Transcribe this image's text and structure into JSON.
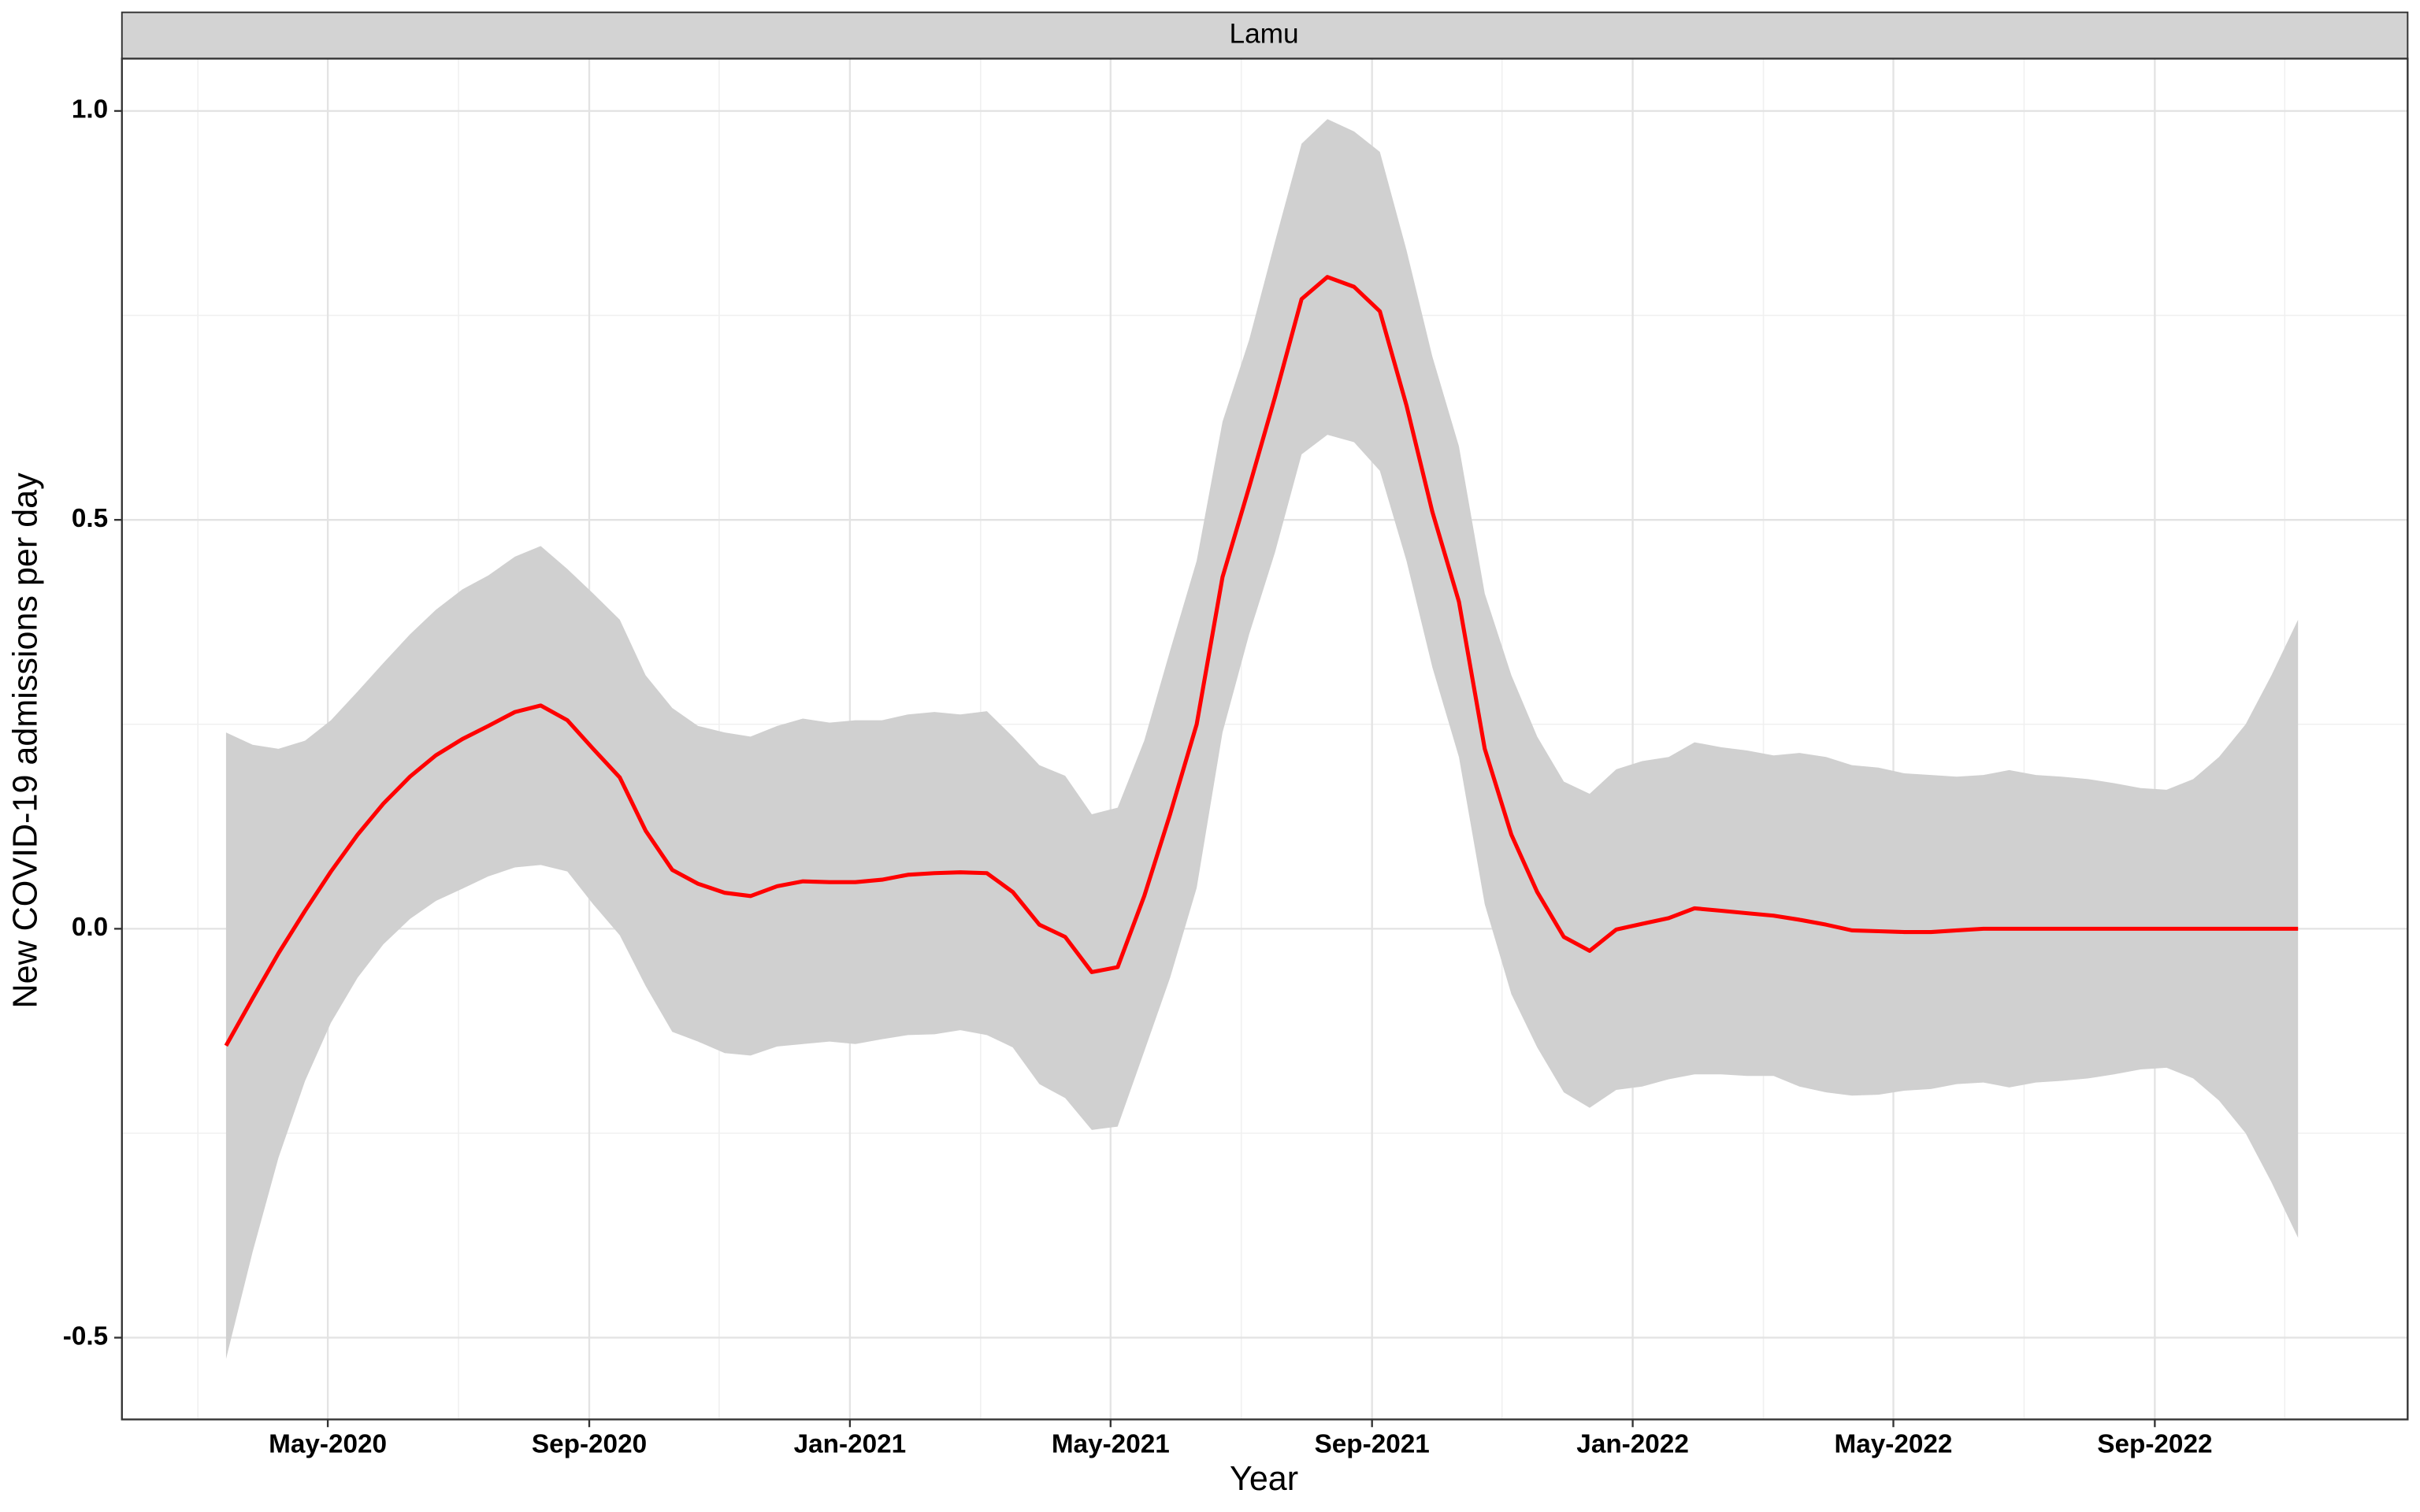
{
  "chart_data": {
    "type": "line",
    "facet": "Lamu",
    "xlabel": "Year",
    "ylabel": "New COVID-19 admissions per day",
    "color": "#ff0000",
    "band_color": "#d0d0d0",
    "grid": true,
    "xlim": [
      2020.07,
      2022.99
    ],
    "ylim": [
      -0.6,
      1.064
    ],
    "xticks": [
      {
        "value": 2020.333,
        "label": "May-2020"
      },
      {
        "value": 2020.667,
        "label": "Sep-2020"
      },
      {
        "value": 2021.0,
        "label": "Jan-2021"
      },
      {
        "value": 2021.333,
        "label": "May-2021"
      },
      {
        "value": 2021.667,
        "label": "Sep-2021"
      },
      {
        "value": 2022.0,
        "label": "Jan-2022"
      },
      {
        "value": 2022.333,
        "label": "May-2022"
      },
      {
        "value": 2022.667,
        "label": "Sep-2022"
      }
    ],
    "xminor": [
      2020.167,
      2020.5,
      2020.833,
      2021.167,
      2021.5,
      2021.833,
      2022.167,
      2022.5,
      2022.833
    ],
    "yticks": [
      -0.5,
      {
        "value": 0,
        "label": "0.0"
      },
      0.5,
      {
        "value": 1,
        "label": "1.0"
      }
    ],
    "yminor": [
      -0.25,
      0.25,
      0.75
    ],
    "x": [
      2020.203,
      2020.237,
      2020.27,
      2020.304,
      2020.337,
      2020.371,
      2020.404,
      2020.438,
      2020.471,
      2020.505,
      2020.538,
      2020.572,
      2020.605,
      2020.639,
      2020.672,
      2020.706,
      2020.739,
      2020.773,
      2020.806,
      2020.84,
      2020.873,
      2020.907,
      2020.94,
      2020.974,
      2021.007,
      2021.041,
      2021.074,
      2021.108,
      2021.141,
      2021.175,
      2021.208,
      2021.242,
      2021.275,
      2021.309,
      2021.342,
      2021.376,
      2021.409,
      2021.443,
      2021.476,
      2021.51,
      2021.543,
      2021.577,
      2021.61,
      2021.644,
      2021.677,
      2021.711,
      2021.744,
      2021.778,
      2021.811,
      2021.845,
      2021.878,
      2021.912,
      2021.945,
      2021.979,
      2022.012,
      2022.046,
      2022.079,
      2022.113,
      2022.146,
      2022.18,
      2022.213,
      2022.247,
      2022.28,
      2022.314,
      2022.347,
      2022.381,
      2022.414,
      2022.448,
      2022.481,
      2022.515,
      2022.548,
      2022.582,
      2022.615,
      2022.649,
      2022.682,
      2022.716,
      2022.749,
      2022.783,
      2022.816,
      2022.85
    ],
    "values": [
      -0.143,
      -0.085,
      -0.03,
      0.022,
      0.07,
      0.115,
      0.153,
      0.186,
      0.212,
      0.232,
      0.248,
      0.265,
      0.273,
      0.255,
      0.22,
      0.185,
      0.12,
      0.072,
      0.055,
      0.044,
      0.04,
      0.052,
      0.058,
      0.057,
      0.057,
      0.06,
      0.066,
      0.068,
      0.069,
      0.068,
      0.045,
      0.005,
      -0.01,
      -0.053,
      -0.047,
      0.04,
      0.14,
      0.25,
      0.43,
      0.54,
      0.65,
      0.77,
      0.797,
      0.785,
      0.755,
      0.64,
      0.51,
      0.4,
      0.22,
      0.115,
      0.045,
      -0.01,
      -0.027,
      -0.001,
      0.006,
      0.013,
      0.025,
      0.022,
      0.019,
      0.016,
      0.011,
      0.005,
      -0.002,
      -0.003,
      -0.004,
      -0.004,
      -0.002,
      0,
      0,
      0,
      0,
      0,
      0,
      0,
      0,
      0,
      0,
      0,
      0,
      0
    ],
    "upper": [
      0.24,
      0.225,
      0.22,
      0.23,
      0.255,
      0.29,
      0.325,
      0.36,
      0.39,
      0.415,
      0.432,
      0.455,
      0.468,
      0.44,
      0.41,
      0.378,
      0.31,
      0.27,
      0.248,
      0.24,
      0.235,
      0.248,
      0.257,
      0.252,
      0.255,
      0.255,
      0.262,
      0.265,
      0.262,
      0.266,
      0.235,
      0.2,
      0.187,
      0.14,
      0.148,
      0.23,
      0.34,
      0.45,
      0.62,
      0.72,
      0.84,
      0.96,
      0.99,
      0.975,
      0.95,
      0.83,
      0.7,
      0.59,
      0.41,
      0.31,
      0.235,
      0.18,
      0.165,
      0.195,
      0.205,
      0.21,
      0.228,
      0.222,
      0.218,
      0.212,
      0.215,
      0.21,
      0.2,
      0.197,
      0.19,
      0.188,
      0.186,
      0.188,
      0.194,
      0.188,
      0.186,
      0.183,
      0.178,
      0.172,
      0.17,
      0.183,
      0.21,
      0.25,
      0.31,
      0.378
    ],
    "lower": [
      -0.526,
      -0.395,
      -0.28,
      -0.186,
      -0.115,
      -0.06,
      -0.019,
      0.012,
      0.034,
      0.049,
      0.064,
      0.075,
      0.078,
      0.07,
      0.03,
      -0.008,
      -0.07,
      -0.126,
      -0.138,
      -0.152,
      -0.155,
      -0.144,
      -0.141,
      -0.138,
      -0.141,
      -0.135,
      -0.13,
      -0.129,
      -0.124,
      -0.13,
      -0.145,
      -0.19,
      -0.207,
      -0.246,
      -0.242,
      -0.15,
      -0.06,
      0.05,
      0.24,
      0.36,
      0.46,
      0.58,
      0.604,
      0.595,
      0.56,
      0.45,
      0.32,
      0.21,
      0.03,
      -0.08,
      -0.145,
      -0.2,
      -0.219,
      -0.197,
      -0.193,
      -0.184,
      -0.178,
      -0.178,
      -0.18,
      -0.18,
      -0.193,
      -0.2,
      -0.204,
      -0.203,
      -0.198,
      -0.196,
      -0.19,
      -0.188,
      -0.194,
      -0.188,
      -0.186,
      -0.183,
      -0.178,
      -0.172,
      -0.17,
      -0.183,
      -0.21,
      -0.25,
      -0.31,
      -0.378
    ]
  }
}
